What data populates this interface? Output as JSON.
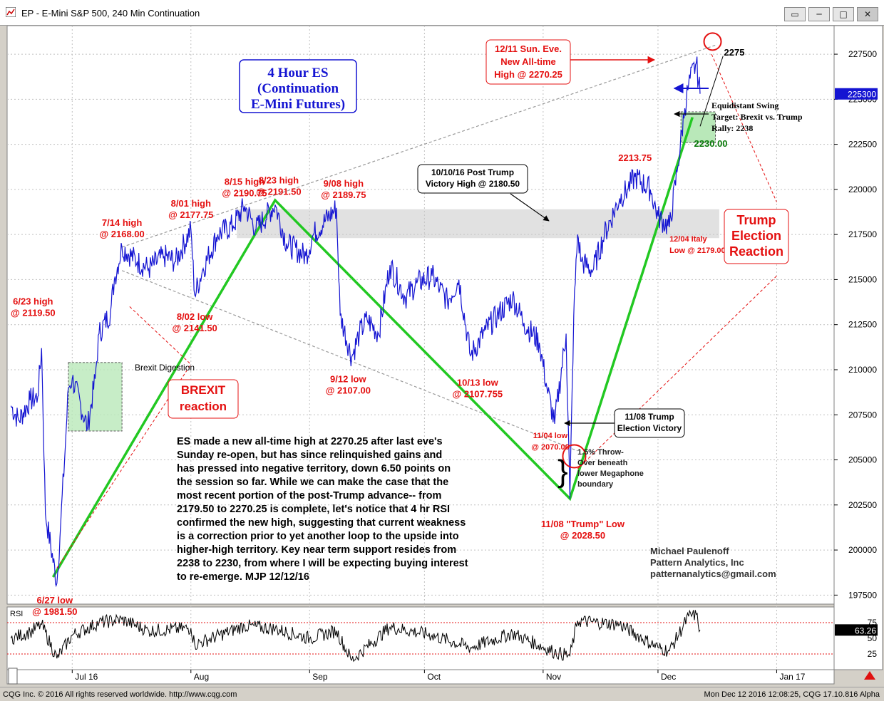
{
  "window": {
    "title": "EP - E-Mini S&P 500, 240 Min Continuation",
    "buttons": [
      "▭",
      "─",
      "□",
      "✕"
    ]
  },
  "status": {
    "left": "CQG Inc. © 2016 All rights reserved worldwide. http://www.cqg.com",
    "right": "Mon Dec 12 2016 12:08:25, CQG 17.10.816 Alpha"
  },
  "chart_data": {
    "type": "line",
    "title": "4 Hour ES (Continuation E-Mini Futures)",
    "title_lines": [
      "4 Hour ES",
      "(Continuation",
      "E-Mini Futures)"
    ],
    "ylim": [
      1970,
      2290
    ],
    "y_ticks": [
      "227500",
      "225000",
      "222500",
      "220000",
      "217500",
      "215000",
      "212500",
      "210000",
      "207500",
      "205000",
      "202500",
      "200000",
      "197500"
    ],
    "y_tick_values": [
      2275,
      2250,
      2225,
      2200,
      2175,
      2150,
      2125,
      2100,
      2075,
      2050,
      2025,
      2000,
      1975
    ],
    "x_ticks": [
      "Jul 16",
      "Aug",
      "Sep",
      "Oct",
      "Nov",
      "Dec",
      "Jan 17"
    ],
    "x_tick_dates": [
      "2016-07-01",
      "2016-08-01",
      "2016-09-01",
      "2016-10-01",
      "2016-11-01",
      "2016-12-01",
      "2017-01-01"
    ],
    "last_price": "225300",
    "series": [
      {
        "points": [
          [
            "2016-06-15",
            2080
          ],
          [
            "2016-06-17",
            2072
          ],
          [
            "2016-06-20",
            2083
          ],
          [
            "2016-06-22",
            2085
          ],
          [
            "2016-06-23",
            2112
          ],
          [
            "2016-06-24",
            2020
          ],
          [
            "2016-06-27",
            1981.5
          ],
          [
            "2016-06-28",
            2015
          ],
          [
            "2016-06-29",
            2050
          ],
          [
            "2016-06-30",
            2090
          ],
          [
            "2016-07-01",
            2095
          ],
          [
            "2016-07-05",
            2068
          ],
          [
            "2016-07-07",
            2095
          ],
          [
            "2016-07-08",
            2120
          ],
          [
            "2016-07-11",
            2132
          ],
          [
            "2016-07-12",
            2150
          ],
          [
            "2016-07-14",
            2168
          ],
          [
            "2016-07-18",
            2160
          ],
          [
            "2016-07-21",
            2156
          ],
          [
            "2016-07-25",
            2163
          ],
          [
            "2016-07-28",
            2160
          ],
          [
            "2016-08-01",
            2177.75
          ],
          [
            "2016-08-02",
            2141.5
          ],
          [
            "2016-08-04",
            2155
          ],
          [
            "2016-08-08",
            2175
          ],
          [
            "2016-08-12",
            2180
          ],
          [
            "2016-08-15",
            2190.75
          ],
          [
            "2016-08-18",
            2178
          ],
          [
            "2016-08-23",
            2191.5
          ],
          [
            "2016-08-26",
            2170
          ],
          [
            "2016-08-31",
            2163
          ],
          [
            "2016-09-02",
            2175
          ],
          [
            "2016-09-08",
            2189.75
          ],
          [
            "2016-09-09",
            2130
          ],
          [
            "2016-09-12",
            2107
          ],
          [
            "2016-09-14",
            2120
          ],
          [
            "2016-09-16",
            2128
          ],
          [
            "2016-09-19",
            2120
          ],
          [
            "2016-09-22",
            2158
          ],
          [
            "2016-09-26",
            2140
          ],
          [
            "2016-09-29",
            2148
          ],
          [
            "2016-10-03",
            2152
          ],
          [
            "2016-10-05",
            2145
          ],
          [
            "2016-10-07",
            2138
          ],
          [
            "2016-10-10",
            2150
          ],
          [
            "2016-10-13",
            2107.755
          ],
          [
            "2016-10-17",
            2122
          ],
          [
            "2016-10-20",
            2130
          ],
          [
            "2016-10-24",
            2140
          ],
          [
            "2016-10-27",
            2126
          ],
          [
            "2016-10-31",
            2115
          ],
          [
            "2016-11-02",
            2090
          ],
          [
            "2016-11-04",
            2070
          ],
          [
            "2016-11-07",
            2120
          ],
          [
            "2016-11-08",
            2028.5
          ],
          [
            "2016-11-09",
            2130
          ],
          [
            "2016-11-10",
            2175
          ],
          [
            "2016-11-11",
            2160
          ],
          [
            "2016-11-14",
            2155
          ],
          [
            "2016-11-17",
            2175
          ],
          [
            "2016-11-21",
            2195
          ],
          [
            "2016-11-23",
            2200
          ],
          [
            "2016-11-25",
            2207
          ],
          [
            "2016-11-29",
            2200
          ],
          [
            "2016-12-01",
            2185
          ],
          [
            "2016-12-04",
            2179
          ],
          [
            "2016-12-06",
            2210
          ],
          [
            "2016-12-08",
            2245
          ],
          [
            "2016-12-09",
            2258
          ],
          [
            "2016-12-11",
            2270.25
          ],
          [
            "2016-12-12",
            2253
          ]
        ]
      }
    ],
    "rsi": {
      "label": "RSI",
      "ylim": [
        0,
        100
      ],
      "ticks": [
        "75",
        "50",
        "25"
      ],
      "tick_values": [
        75,
        50,
        25
      ],
      "current": "63.26",
      "points": [
        [
          "2016-06-15",
          50
        ],
        [
          "2016-06-20",
          60
        ],
        [
          "2016-06-23",
          72
        ],
        [
          "2016-06-27",
          18
        ],
        [
          "2016-07-01",
          55
        ],
        [
          "2016-07-08",
          75
        ],
        [
          "2016-07-14",
          80
        ],
        [
          "2016-07-21",
          62
        ],
        [
          "2016-08-01",
          66
        ],
        [
          "2016-08-02",
          40
        ],
        [
          "2016-08-15",
          70
        ],
        [
          "2016-08-23",
          65
        ],
        [
          "2016-09-01",
          50
        ],
        [
          "2016-09-08",
          62
        ],
        [
          "2016-09-12",
          15
        ],
        [
          "2016-09-22",
          68
        ],
        [
          "2016-10-03",
          55
        ],
        [
          "2016-10-13",
          35
        ],
        [
          "2016-10-24",
          58
        ],
        [
          "2016-11-04",
          28
        ],
        [
          "2016-11-08",
          22
        ],
        [
          "2016-11-10",
          78
        ],
        [
          "2016-11-21",
          72
        ],
        [
          "2016-12-01",
          35
        ],
        [
          "2016-12-04",
          30
        ],
        [
          "2016-12-09",
          85
        ],
        [
          "2016-12-11",
          88
        ],
        [
          "2016-12-12",
          63.26
        ]
      ]
    },
    "annotations": [
      {
        "id": "a-623",
        "date": "2016-06-23",
        "price": 2119.5,
        "lines": [
          "6/23 high",
          "@ 2119.50"
        ]
      },
      {
        "id": "a-627",
        "date": "2016-06-27",
        "price": 1981.5,
        "lines": [
          "6/27 low",
          "@ 1981.50"
        ]
      },
      {
        "id": "a-714",
        "date": "2016-07-14",
        "price": 2168,
        "lines": [
          "7/14 high",
          "@ 2168.00"
        ]
      },
      {
        "id": "a-801",
        "date": "2016-08-01",
        "price": 2177.75,
        "lines": [
          "8/01 high",
          "@ 2177.75"
        ]
      },
      {
        "id": "a-802",
        "date": "2016-08-02",
        "price": 2141.5,
        "lines": [
          "8/02 low",
          "@ 2141.50"
        ]
      },
      {
        "id": "a-815",
        "date": "2016-08-15",
        "price": 2190.75,
        "lines": [
          "8/15 high",
          "@ 2190.75"
        ]
      },
      {
        "id": "a-823",
        "date": "2016-08-23",
        "price": 2191.5,
        "lines": [
          "8/23 high",
          "@ 2191.50"
        ]
      },
      {
        "id": "a-908",
        "date": "2016-09-08",
        "price": 2189.75,
        "lines": [
          "9/08 high",
          "@ 2189.75"
        ]
      },
      {
        "id": "a-912",
        "date": "2016-09-12",
        "price": 2107,
        "lines": [
          "9/12 low",
          "@ 2107.00"
        ]
      },
      {
        "id": "a-1013",
        "date": "2016-10-13",
        "price": 2107.755,
        "lines": [
          "10/13 low",
          "@ 2107.755"
        ]
      },
      {
        "id": "a-1104",
        "date": "2016-11-04",
        "price": 2070,
        "lines": [
          "11/04 low",
          "@ 2070.00"
        ]
      },
      {
        "id": "a-1108",
        "date": "2016-11-08",
        "price": 2028.5,
        "lines": [
          "11/08 \"Trump\" Low",
          "@ 2028.50"
        ]
      },
      {
        "id": "a-2213",
        "date": "2016-11-25",
        "price": 2213.75,
        "lines": [
          "2213.75"
        ]
      },
      {
        "id": "a-1204",
        "date": "2016-12-04",
        "price": 2179,
        "lines": [
          "12/04 Italy",
          "Low @ 2179.00"
        ]
      },
      {
        "id": "a-2230",
        "date": "2016-12-08",
        "price": 2230,
        "lines": [
          "2230.00"
        ]
      },
      {
        "id": "a-2275",
        "date": "2016-12-16",
        "price": 2275,
        "lines": [
          "2275"
        ]
      }
    ],
    "callouts": {
      "new_high": [
        "12/11 Sun. Eve.",
        "New All-time",
        "High @ 2270.25"
      ],
      "post_trump": [
        "10/10/16 Post Trump",
        "Victory High @ 2180.50"
      ],
      "election_victory": [
        "11/08 Trump",
        "Election Victory"
      ],
      "brexit_digestion": "Brexit Digestion",
      "brexit_reaction": [
        "BREXIT",
        "reaction"
      ],
      "trump_reaction": [
        "Trump",
        "Election",
        "Reaction"
      ],
      "swing_target": [
        "Equidistant Swing",
        "Target: Brexit vs. Trump",
        "Rally: 2238"
      ],
      "throw_over": [
        "1.5% Throw-",
        "Over beneath",
        "lower Megaphone",
        "boundary"
      ]
    },
    "commentary": [
      "ES made a new all-time high at 2270.25 after last eve's",
      "Sunday re-open, but has since relinquished gains and",
      "has pressed into negative territory, down 6.50 points on",
      "the session so far. While we can make the case that the",
      "most recent portion of the post-Trump advance-- from",
      "2179.50 to 2270.25 is complete, let's notice that 4 hr RSI",
      "confirmed the new high, suggesting that current weakness",
      "is a correction prior to yet another loop to the upside into",
      "higher-high territory. Key near term support resides from",
      "2238 to 2230, from where I will be expecting buying interest",
      "to re-emerge. MJP 12/12/16"
    ],
    "author": [
      "Michael Paulenoff",
      "Pattern Analytics, Inc",
      "patternanalytics@gmail.com"
    ],
    "colors": {
      "price": "#1414d2",
      "annotation": "#e41010",
      "trend": "#22c822",
      "title": "#1414d2",
      "zone_green": "#b9e8b9",
      "zone_grey": "#c8c8c8"
    }
  }
}
